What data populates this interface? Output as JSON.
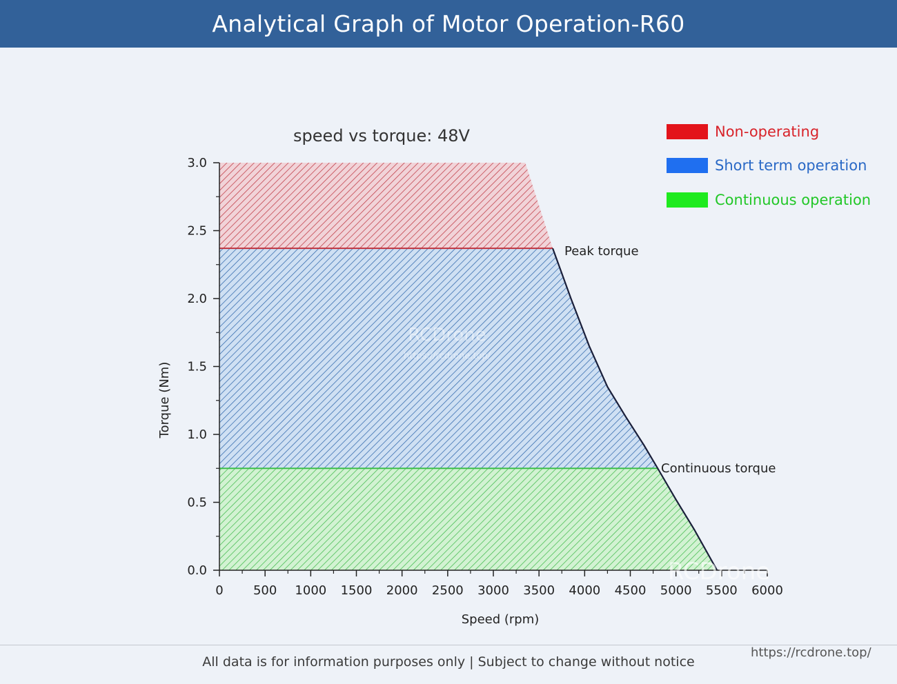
{
  "header": {
    "title": "Analytical Graph of Motor Operation-R60"
  },
  "footer": {
    "note": "All data is for information purposes only | Subject to change without notice",
    "url": "https://rcdrone.top/"
  },
  "watermarks": {
    "center": "RCDrone",
    "center_sub": "https://rcdrone.top/",
    "corner": "RCDrone"
  },
  "colors": {
    "header": "#326199",
    "non_operating": "#e3141b",
    "short_term": "#1f6ff0",
    "continuous": "#1fea1f",
    "curve": "#1a1f3a"
  },
  "chart_data": {
    "type": "area",
    "title": "speed vs torque: 48V",
    "xlabel": "Speed (rpm)",
    "ylabel": "Torque (Nm)",
    "xlim": [
      0,
      6000
    ],
    "ylim": [
      0,
      3.0
    ],
    "x_ticks": [
      "0",
      "500",
      "1000",
      "1500",
      "2000",
      "2500",
      "3000",
      "3500",
      "4000",
      "4500",
      "5000",
      "5500",
      "6000"
    ],
    "y_ticks": [
      "0.0",
      "0.5",
      "1.0",
      "1.5",
      "2.0",
      "2.5",
      "3.0"
    ],
    "legend_position": "top-right",
    "grid": false,
    "peak_torque": 2.37,
    "continuous_torque": 0.75,
    "limit_curve": {
      "x": [
        3650,
        3850,
        4050,
        4250,
        4450,
        4650,
        4800,
        5000,
        5200,
        5450
      ],
      "y": [
        2.37,
        2.0,
        1.65,
        1.35,
        1.13,
        0.92,
        0.75,
        0.52,
        0.3,
        0.0
      ]
    },
    "series": [
      {
        "name": "Non-operating",
        "region": {
          "y_from": 2.37,
          "y_to": 3.0,
          "x_top_end": 3350,
          "x_bottom_end": 3650
        }
      },
      {
        "name": "Short term operation",
        "region": {
          "y_from": 0.75,
          "y_to": 2.37
        }
      },
      {
        "name": "Continuous operation",
        "region": {
          "y_from": 0.0,
          "y_to": 0.75
        }
      }
    ],
    "annotations": [
      "Peak torque",
      "Continuous torque"
    ]
  }
}
